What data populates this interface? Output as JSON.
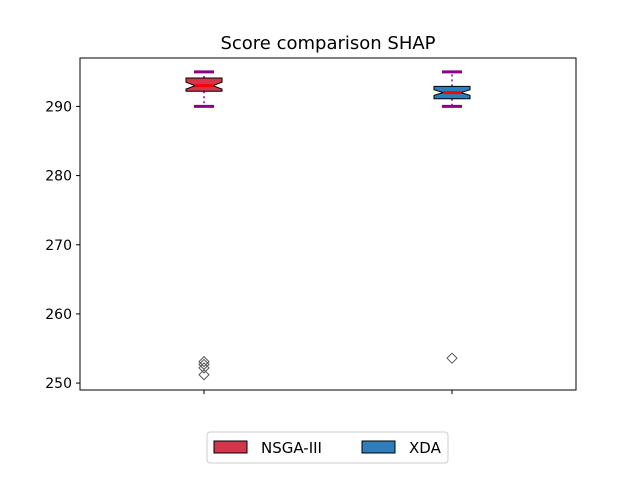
{
  "chart_data": {
    "type": "box",
    "title": "Score comparison SHAP",
    "xlabel": "",
    "ylabel": "",
    "ylim": [
      249.0,
      297.0
    ],
    "yticks": [
      250,
      260,
      270,
      280,
      290
    ],
    "grid": false,
    "legend_position": "bottom-center",
    "series": [
      {
        "name": "NSGA-III",
        "color": "#d3364b",
        "median_color": "#ff0000",
        "stats": {
          "whisker_low": 290.0,
          "q1": 292.2,
          "median": 293.0,
          "q3": 294.1,
          "whisker_high": 295.0,
          "notch_low": 292.5,
          "notch_high": 293.5
        },
        "outliers": [
          253.1,
          252.7,
          252.2,
          251.2
        ]
      },
      {
        "name": "XDA",
        "color": "#2e7ebc",
        "median_color": "#ff0000",
        "stats": {
          "whisker_low": 290.0,
          "q1": 291.1,
          "median": 292.0,
          "q3": 292.9,
          "whisker_high": 295.0,
          "notch_low": 291.6,
          "notch_high": 292.4
        },
        "outliers": [
          253.6
        ]
      }
    ],
    "whisker_color": "#8b008b",
    "outlier_marker": "diamond"
  }
}
